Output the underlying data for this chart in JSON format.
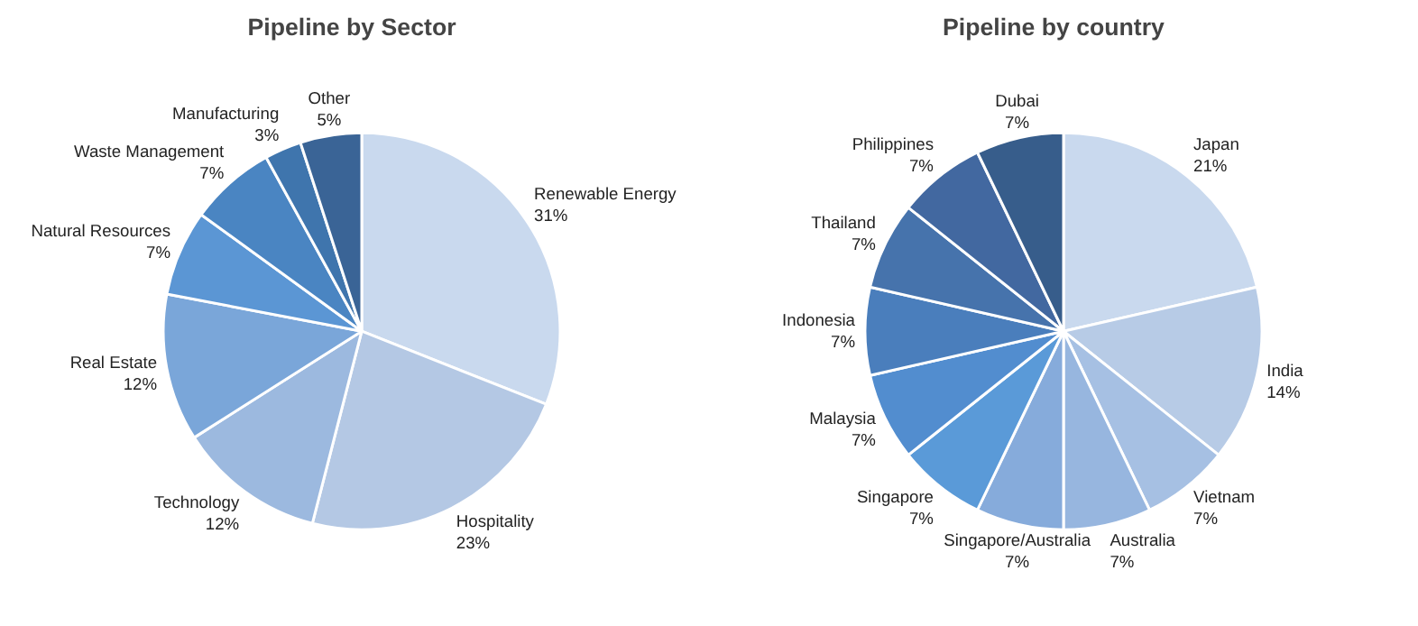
{
  "chart_data": [
    {
      "type": "pie",
      "title": "Pipeline by Sector",
      "categories": [
        "Renewable Energy",
        "Hospitality",
        "Technology",
        "Real Estate",
        "Natural Resources",
        "Waste Management",
        "Manufacturing",
        "Other"
      ],
      "values": [
        31,
        23,
        12,
        12,
        7,
        7,
        3,
        5
      ],
      "value_labels": [
        "31%",
        "23%",
        "12%",
        "12%",
        "7%",
        "7%",
        "3%",
        "5%"
      ],
      "colors": [
        "#c9d9ee",
        "#b4c8e4",
        "#9cb9df",
        "#7aa6d9",
        "#5b96d4",
        "#4a85c2",
        "#3f75ad",
        "#3a6496"
      ]
    },
    {
      "type": "pie",
      "title": "Pipeline by country",
      "categories": [
        "Japan",
        "India",
        "Vietnam",
        "Australia",
        "Singapore/Australia",
        "Singapore",
        "Malaysia",
        "Indonesia",
        "Thailand",
        "Philippines",
        "Dubai"
      ],
      "values": [
        21,
        14,
        7,
        7,
        7,
        7,
        7,
        7,
        7,
        7,
        7
      ],
      "value_labels": [
        "21%",
        "14%",
        "7%",
        "7%",
        "7%",
        "7%",
        "7%",
        "7%",
        "7%",
        "7%",
        "7%"
      ],
      "colors": [
        "#c9d9ee",
        "#b7cbe6",
        "#a6c0e3",
        "#97b6df",
        "#86abdb",
        "#5a9ad8",
        "#528dcf",
        "#4a7ebc",
        "#4673ac",
        "#4268a0",
        "#375d8b"
      ]
    }
  ]
}
